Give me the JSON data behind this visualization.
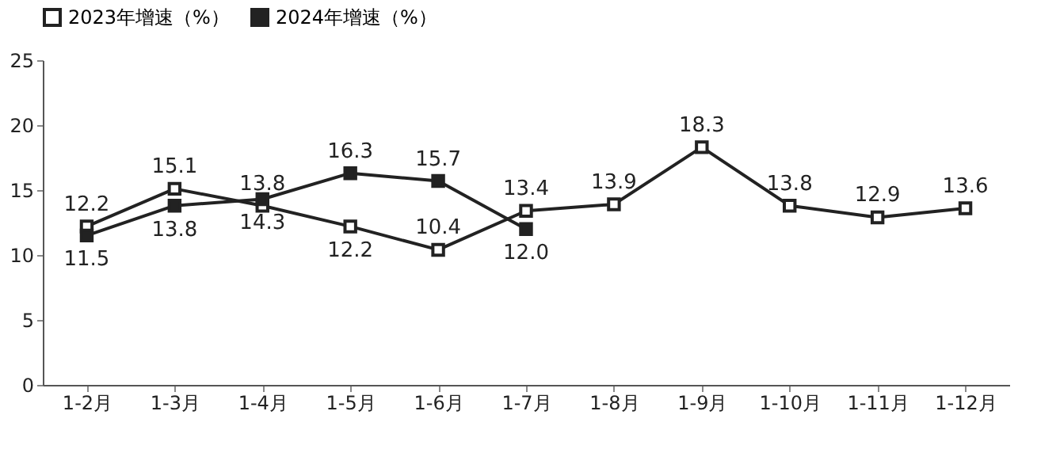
{
  "chart_data": {
    "type": "line",
    "categories": [
      "1-2月",
      "1-3月",
      "1-4月",
      "1-5月",
      "1-6月",
      "1-7月",
      "1-8月",
      "1-9月",
      "1-10月",
      "1-11月",
      "1-12月"
    ],
    "series": [
      {
        "name": "2023年增速（%）",
        "color": "#222222",
        "values": [
          12.2,
          15.1,
          13.8,
          12.2,
          10.4,
          13.4,
          13.9,
          18.3,
          13.8,
          12.9,
          13.6
        ]
      },
      {
        "name": "2024年增速（%）",
        "color": "#222222",
        "values": [
          11.5,
          13.8,
          14.3,
          16.3,
          15.7,
          12.0,
          null,
          null,
          null,
          null,
          null
        ],
        "value_labels": [
          "11.5",
          "13.8",
          "14.3",
          "16.3",
          "15.7",
          "12.0",
          null,
          null,
          null,
          null,
          null
        ]
      }
    ],
    "ylim": [
      0,
      25
    ],
    "yticks": [
      0,
      5,
      10,
      15,
      20,
      25
    ],
    "data_labels": true,
    "legend": "top",
    "marker": "square",
    "grid": false
  }
}
